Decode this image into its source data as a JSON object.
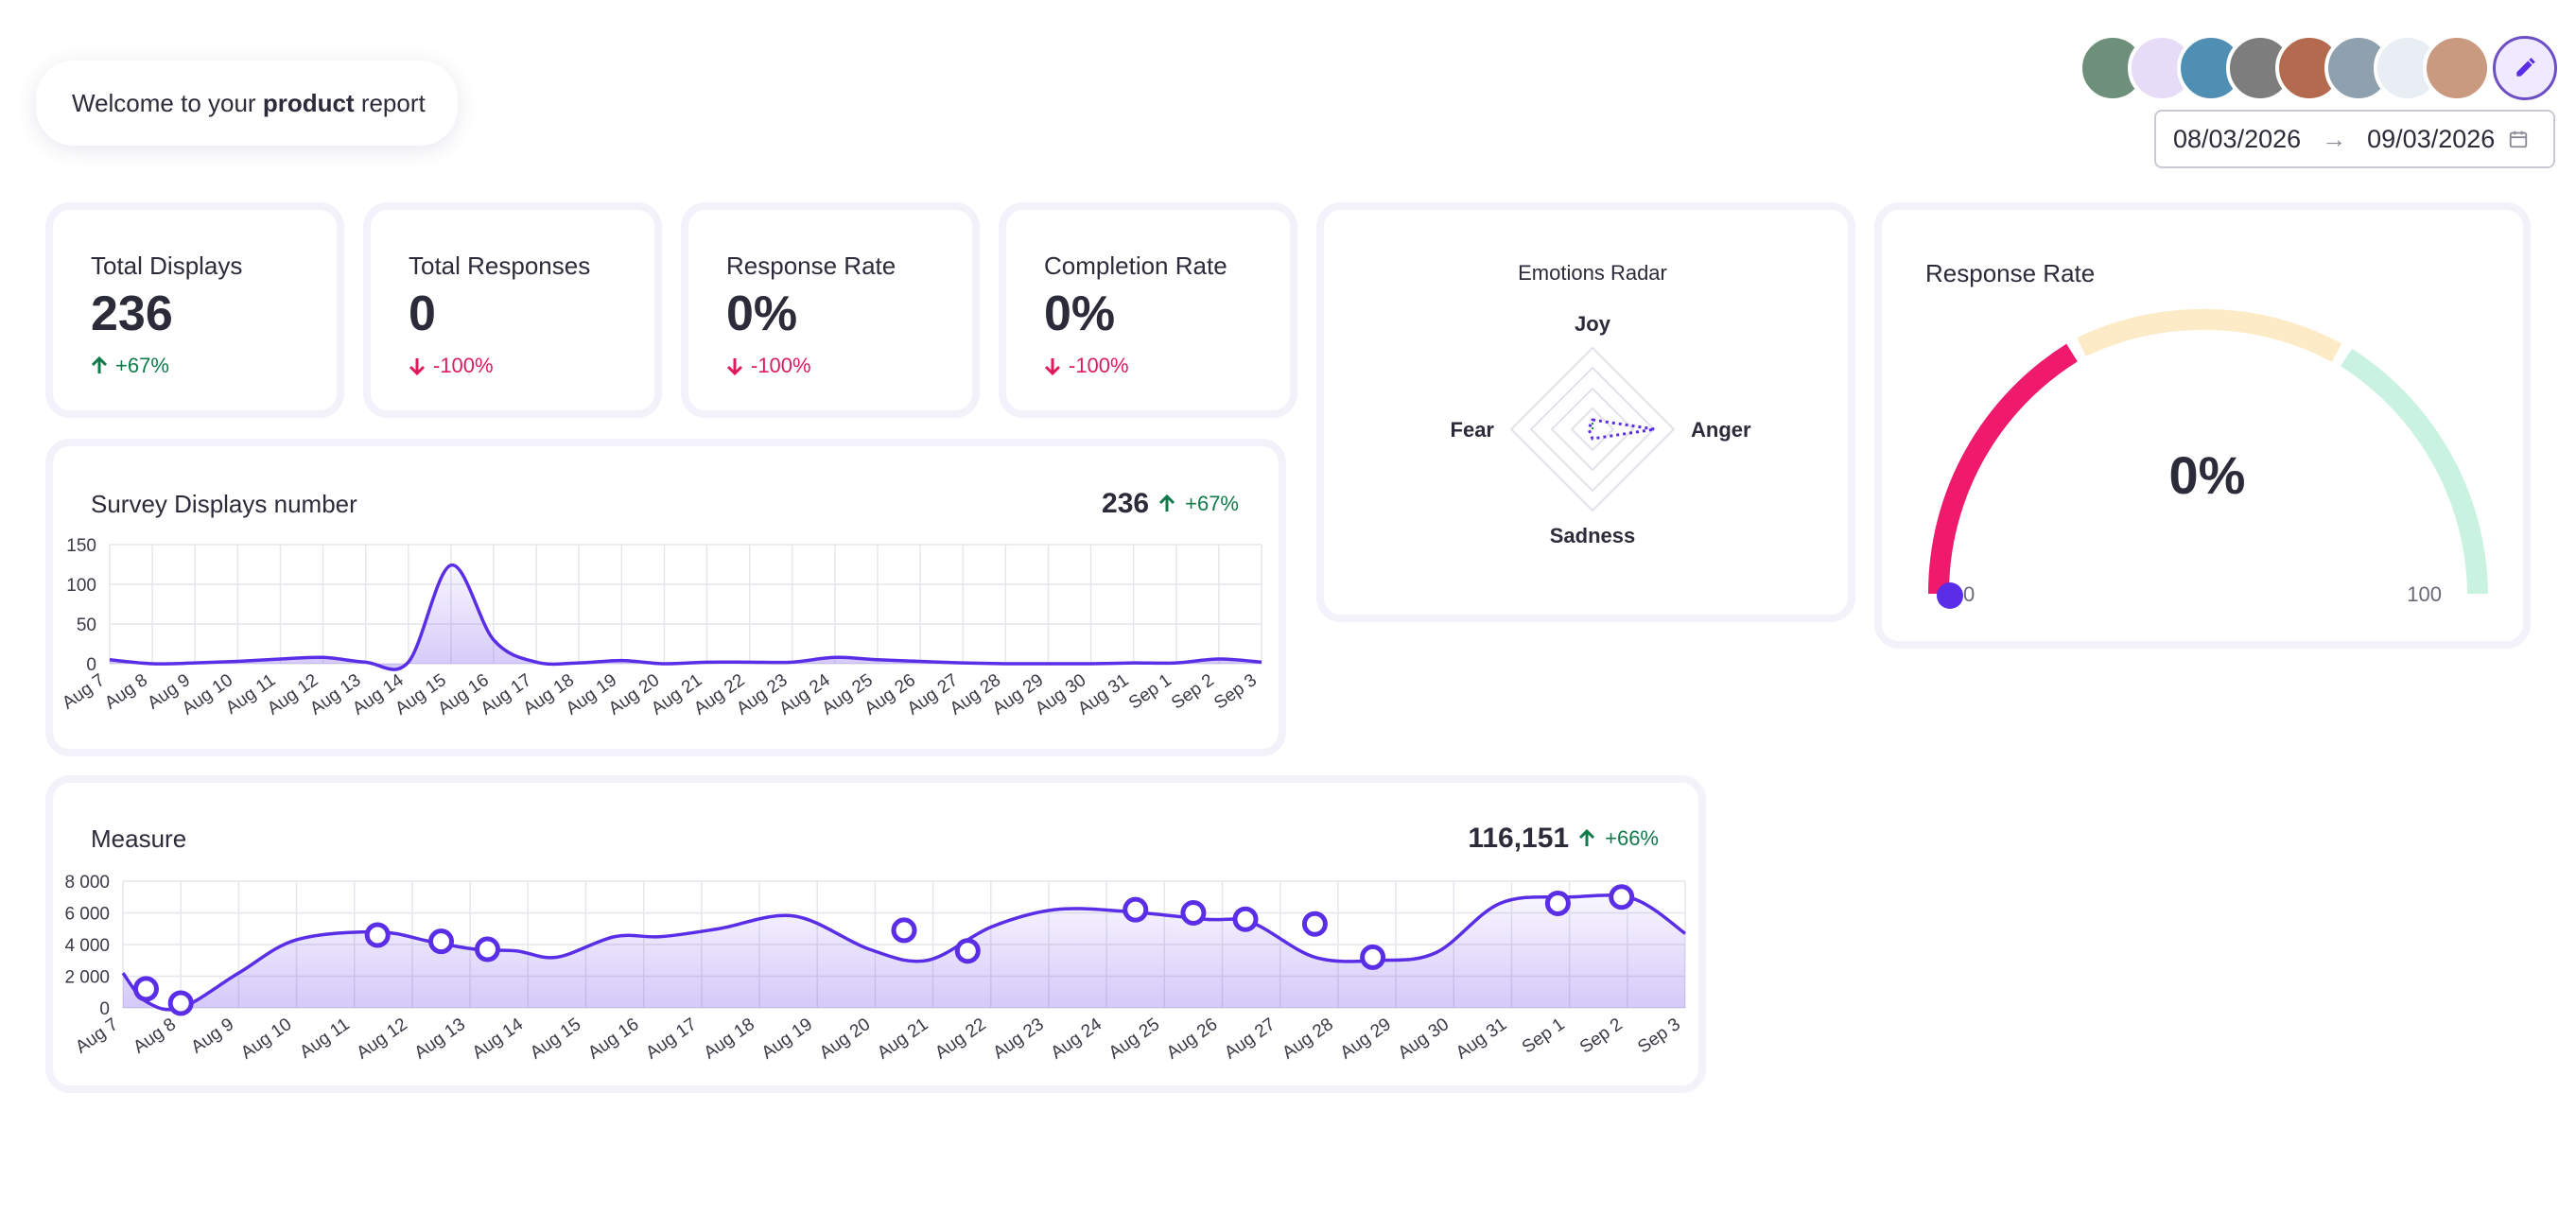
{
  "header": {
    "welcome_prefix": "Welcome to your ",
    "welcome_bold": "product",
    "welcome_suffix": " report",
    "date_from": "08/03/2026",
    "date_arrow": "→",
    "date_to": "09/03/2026",
    "avatars": [
      {
        "name": "avatar-1",
        "color": "#6e8f7a"
      },
      {
        "name": "avatar-2",
        "color": "#e6dcf7"
      },
      {
        "name": "avatar-3",
        "color": "#4f8fb3"
      },
      {
        "name": "avatar-4",
        "color": "#7d7d7d"
      },
      {
        "name": "avatar-5",
        "color": "#b46a4e"
      },
      {
        "name": "avatar-6",
        "color": "#8fa0ae"
      },
      {
        "name": "avatar-7",
        "color": "#e9eef4"
      },
      {
        "name": "avatar-8",
        "color": "#c99a80"
      }
    ],
    "edit_icon": "pencil-icon"
  },
  "kpis": [
    {
      "title": "Total Displays",
      "value": "236",
      "delta": "+67%",
      "direction": "up"
    },
    {
      "title": "Total Responses",
      "value": "0",
      "delta": "-100%",
      "direction": "down"
    },
    {
      "title": "Response Rate",
      "value": "0%",
      "delta": "-100%",
      "direction": "down"
    },
    {
      "title": "Completion Rate",
      "value": "0%",
      "delta": "-100%",
      "direction": "down"
    }
  ],
  "radar": {
    "title": "Emotions Radar",
    "axes": [
      "Joy",
      "Anger",
      "Sadness",
      "Fear"
    ]
  },
  "gauge": {
    "title": "Response Rate",
    "value_label": "0%",
    "min_label": "0",
    "max_label": "100",
    "value": 0,
    "colors": {
      "low": "#ef1a6c",
      "mid": "#fdebc8",
      "high": "#c9f2e1"
    }
  },
  "displays": {
    "title": "Survey Displays number",
    "total": "236",
    "delta": "+67%"
  },
  "measure": {
    "title": "Measure",
    "total": "116,151",
    "delta": "+66%"
  },
  "chart_data": [
    {
      "type": "area",
      "name": "Survey Displays number",
      "categories": [
        "Aug 7",
        "Aug 8",
        "Aug 9",
        "Aug 10",
        "Aug 11",
        "Aug 12",
        "Aug 13",
        "Aug 14",
        "Aug 15",
        "Aug 16",
        "Aug 17",
        "Aug 18",
        "Aug 19",
        "Aug 20",
        "Aug 21",
        "Aug 22",
        "Aug 23",
        "Aug 24",
        "Aug 25",
        "Aug 26",
        "Aug 27",
        "Aug 28",
        "Aug 29",
        "Aug 30",
        "Aug 31",
        "Sep 1",
        "Sep 2",
        "Sep 3"
      ],
      "values": [
        5,
        0,
        1,
        3,
        6,
        8,
        2,
        2,
        124,
        30,
        2,
        1,
        4,
        0,
        2,
        2,
        2,
        8,
        5,
        3,
        1,
        0,
        0,
        0,
        1,
        1,
        6,
        2
      ],
      "ylim": [
        0,
        150
      ],
      "yticks": [
        0,
        50,
        100,
        150
      ],
      "grid": true,
      "color": "#5a2ee6"
    },
    {
      "type": "area",
      "name": "Measure",
      "categories": [
        "Aug 7",
        "Aug 8",
        "Aug 9",
        "Aug 10",
        "Aug 11",
        "Aug 12",
        "Aug 13",
        "Aug 14",
        "Aug 15",
        "Aug 16",
        "Aug 17",
        "Aug 18",
        "Aug 19",
        "Aug 20",
        "Aug 21",
        "Aug 22",
        "Aug 23",
        "Aug 24",
        "Aug 25",
        "Aug 26",
        "Aug 27",
        "Aug 28",
        "Aug 29",
        "Aug 30",
        "Aug 31",
        "Sep 1",
        "Sep 2",
        "Sep 3"
      ],
      "x": [
        0,
        0.4,
        1,
        2,
        3,
        4.4,
        5.3,
        6.1,
        6.8,
        7.5,
        8.5,
        9.3,
        10.3,
        11.6,
        12.9,
        13.9,
        15,
        16.1,
        17.3,
        18.7,
        19.5,
        20.6,
        21.7,
        22.7,
        23.8,
        25,
        26.1,
        27
      ],
      "values": [
        2200,
        400,
        0,
        2200,
        4300,
        4800,
        4200,
        3700,
        3600,
        3200,
        4500,
        4500,
        5000,
        5800,
        3700,
        3000,
        5100,
        6200,
        6100,
        5600,
        5400,
        3200,
        3000,
        3500,
        6600,
        7000,
        6900,
        4700
      ],
      "markers": [
        {
          "x": 0.4,
          "y": 1200
        },
        {
          "x": 1,
          "y": 300
        },
        {
          "x": 4.4,
          "y": 4600
        },
        {
          "x": 5.5,
          "y": 4200
        },
        {
          "x": 6.3,
          "y": 3700
        },
        {
          "x": 13.5,
          "y": 4900
        },
        {
          "x": 14.6,
          "y": 3600
        },
        {
          "x": 17.5,
          "y": 6200
        },
        {
          "x": 18.5,
          "y": 6000
        },
        {
          "x": 19.4,
          "y": 5600
        },
        {
          "x": 20.6,
          "y": 5300
        },
        {
          "x": 21.6,
          "y": 3200
        },
        {
          "x": 24.8,
          "y": 6600
        },
        {
          "x": 25.9,
          "y": 7000
        }
      ],
      "ylim": [
        0,
        8000
      ],
      "yticks": [
        "0",
        "2 000",
        "4 000",
        "6 000",
        "8 000"
      ],
      "ytick_values": [
        0,
        2000,
        4000,
        6000,
        8000
      ],
      "grid": true,
      "color": "#5a2ee6"
    }
  ]
}
